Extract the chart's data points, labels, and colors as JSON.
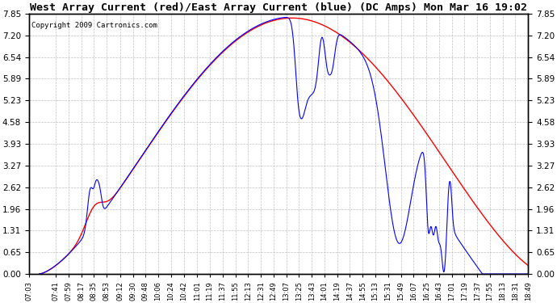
{
  "title": "West Array Current (red)/East Array Current (blue) (DC Amps) Mon Mar 16 19:02",
  "copyright": "Copyright 2009 Cartronics.com",
  "background_color": "#ffffff",
  "plot_bg_color": "#ffffff",
  "grid_color": "#aaaaaa",
  "line_color_red": "#ff0000",
  "line_color_blue": "#0000ff",
  "ylim": [
    0.0,
    7.85
  ],
  "yticks": [
    0.0,
    0.65,
    1.31,
    1.96,
    2.62,
    3.27,
    3.93,
    4.58,
    5.23,
    5.89,
    6.54,
    7.2,
    7.85
  ],
  "x_labels": [
    "07:03",
    "07:41",
    "07:59",
    "08:17",
    "08:35",
    "08:53",
    "09:12",
    "09:30",
    "09:48",
    "10:06",
    "10:24",
    "10:42",
    "11:01",
    "11:19",
    "11:37",
    "11:55",
    "12:13",
    "12:31",
    "12:49",
    "13:07",
    "13:25",
    "13:43",
    "14:01",
    "14:19",
    "14:37",
    "14:55",
    "15:13",
    "15:31",
    "15:49",
    "16:07",
    "16:25",
    "16:43",
    "17:01",
    "17:19",
    "17:37",
    "17:55",
    "18:13",
    "18:31",
    "18:49"
  ],
  "figsize": [
    6.9,
    3.75
  ],
  "dpi": 100
}
